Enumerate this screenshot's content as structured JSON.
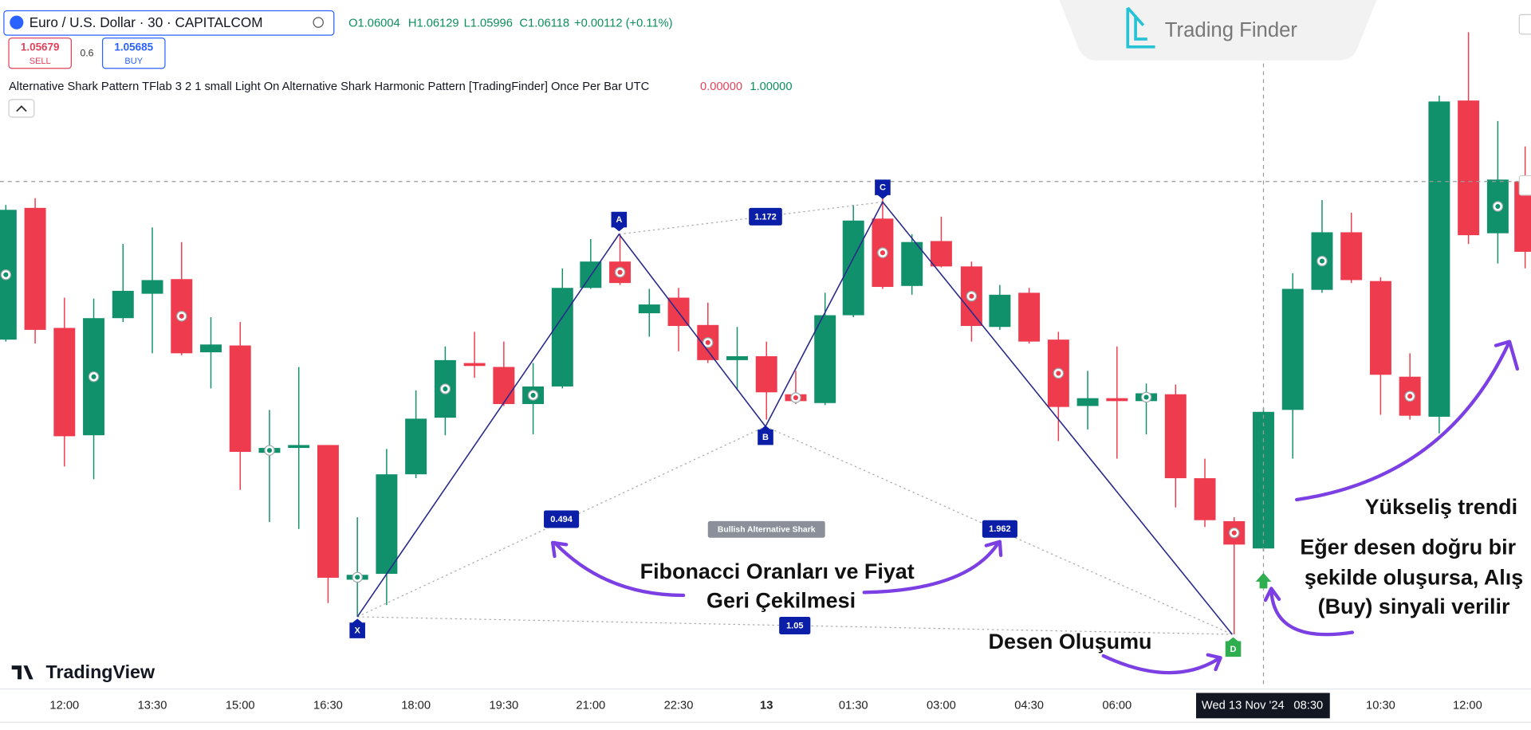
{
  "header": {
    "symbol": "Euro / U.S. Dollar · 30 · CAPITALCOM",
    "open": "O1.06004",
    "high": "H1.06129",
    "low": "L1.05996",
    "close": "C1.06118",
    "change": "+0.00112 (+0.11%)"
  },
  "trade": {
    "sell_price": "1.05679",
    "sell_label": "SELL",
    "spread": "0.6",
    "buy_price": "1.05685",
    "buy_label": "BUY"
  },
  "indicator": {
    "name": "Alternative Shark Pattern TFlab 3 2 1 small Light On Alternative Shark Harmonic Pattern [TradingFinder] Once Per Bar UTC",
    "value1": "0.00000",
    "value2": "1.00000"
  },
  "brand": {
    "logo": "Trading Finder",
    "platform": "TradingView"
  },
  "pattern": {
    "points": [
      "X",
      "A",
      "B",
      "C",
      "D"
    ],
    "ratios": [
      "1.172",
      "0.494",
      "1.962",
      "1.05"
    ],
    "name": "Bullish Alternative Shark"
  },
  "annotations": {
    "fibonacci": [
      "Fibonacci Oranları ve Fiyat",
      "Geri Çekilmesi"
    ],
    "formation": "Desen Oluşumu",
    "uptrend": "Yükseliş trendi",
    "signal": [
      "Eğer desen doğru bir",
      "şekilde oluşursa, Alış",
      "(Buy) sinyali verilir"
    ]
  },
  "time_axis": {
    "labels": [
      "12:00",
      "13:30",
      "15:00",
      "16:30",
      "18:00",
      "19:30",
      "21:00",
      "22:30",
      "13",
      "01:30",
      "03:00",
      "04:30",
      "06:00",
      "10:30",
      "12:00"
    ],
    "cursor_date": "Wed 13 Nov '24",
    "cursor_time": "08:30"
  }
}
